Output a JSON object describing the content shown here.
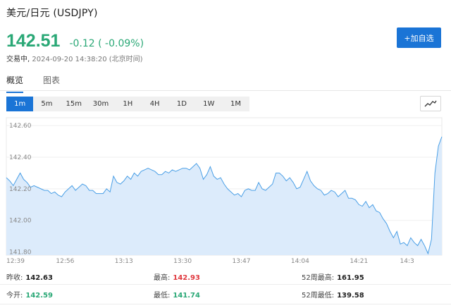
{
  "header": {
    "title": "美元/日元  (USDJPY)",
    "price": "142.51",
    "change": "-0.12 ( -0.09%)",
    "status_label": "交易中,",
    "timestamp": "2024-09-20 14:38:20 (北京时间)",
    "add_button_label": "+加自选"
  },
  "tabs": [
    {
      "label": "概览",
      "active": true
    },
    {
      "label": "图表",
      "active": false
    }
  ],
  "periods": [
    {
      "label": "1m",
      "active": true
    },
    {
      "label": "5m",
      "active": false
    },
    {
      "label": "15m",
      "active": false
    },
    {
      "label": "30m",
      "active": false
    },
    {
      "label": "1H",
      "active": false
    },
    {
      "label": "4H",
      "active": false
    },
    {
      "label": "1D",
      "active": false
    },
    {
      "label": "1W",
      "active": false
    },
    {
      "label": "1M",
      "active": false
    }
  ],
  "colors": {
    "accent": "#1a74d6",
    "down": "#2aa876",
    "up": "#e0383e",
    "line": "#4a9fe6",
    "area": "#dcebfb"
  },
  "chart_data": {
    "type": "area",
    "ylim": [
      141.78,
      142.65
    ],
    "y_ticks": [
      "142.60",
      "142.40",
      "142.20",
      "142.00",
      "141.80"
    ],
    "y_tick_values": [
      142.6,
      142.4,
      142.2,
      142.0,
      141.8
    ],
    "x_ticks": [
      "12:39",
      "12:56",
      "13:13",
      "13:30",
      "13:47",
      "14:04",
      "14:21",
      "14:3"
    ],
    "x_tick_index": [
      0,
      17,
      34,
      51,
      68,
      85,
      102,
      118
    ],
    "series": [
      {
        "values": [
          142.27,
          142.25,
          142.22,
          142.26,
          142.3,
          142.26,
          142.24,
          142.21,
          142.22,
          142.21,
          142.2,
          142.19,
          142.19,
          142.17,
          142.18,
          142.16,
          142.15,
          142.18,
          142.2,
          142.22,
          142.19,
          142.21,
          142.23,
          142.22,
          142.19,
          142.19,
          142.17,
          142.17,
          142.17,
          142.2,
          142.18,
          142.28,
          142.24,
          142.23,
          142.25,
          142.28,
          142.26,
          142.3,
          142.28,
          142.31,
          142.32,
          142.33,
          142.32,
          142.31,
          142.29,
          142.29,
          142.31,
          142.3,
          142.32,
          142.31,
          142.32,
          142.33,
          142.33,
          142.32,
          142.34,
          142.36,
          142.33,
          142.26,
          142.29,
          142.34,
          142.28,
          142.26,
          142.27,
          142.23,
          142.2,
          142.18,
          142.16,
          142.17,
          142.15,
          142.19,
          142.2,
          142.19,
          142.19,
          142.24,
          142.2,
          142.19,
          142.21,
          142.23,
          142.3,
          142.3,
          142.28,
          142.25,
          142.27,
          142.24,
          142.2,
          142.21,
          142.26,
          142.31,
          142.25,
          142.22,
          142.2,
          142.19,
          142.16,
          142.17,
          142.19,
          142.18,
          142.15,
          142.17,
          142.19,
          142.14,
          142.14,
          142.13,
          142.1,
          142.09,
          142.12,
          142.08,
          142.1,
          142.06,
          142.05,
          142.01,
          141.98,
          141.93,
          141.89,
          141.93,
          141.85,
          141.86,
          141.84,
          141.89,
          141.86,
          141.84,
          141.88,
          141.84,
          141.79,
          141.88,
          142.3,
          142.47,
          142.53
        ]
      }
    ]
  },
  "stats": {
    "row1": [
      {
        "label": "昨收:",
        "value": "142.63",
        "tone": "neutral"
      },
      {
        "label": "最高:",
        "value": "142.93",
        "tone": "up"
      },
      {
        "label": "52周最高:",
        "value": "161.95",
        "tone": "neutral"
      }
    ],
    "row2": [
      {
        "label": "今开:",
        "value": "142.59",
        "tone": "down"
      },
      {
        "label": "最低:",
        "value": "141.74",
        "tone": "down"
      },
      {
        "label": "52周最低:",
        "value": "139.58",
        "tone": "neutral"
      }
    ]
  }
}
